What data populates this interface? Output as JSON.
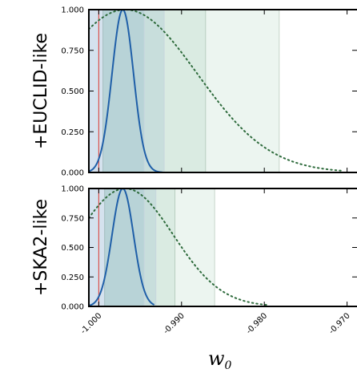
{
  "chart_data": {
    "type": "line",
    "xlabel": "w",
    "xlabel_sub": "0",
    "xlim": [
      -1.0012,
      -0.9688
    ],
    "xticks": [
      -1.0,
      -0.99,
      -0.98,
      -0.97
    ],
    "xtick_labels": [
      "-1.000",
      "-0.990",
      "-0.980",
      "-0.970"
    ],
    "ylim": [
      0,
      1
    ],
    "yticks": [
      0,
      0.25,
      0.5,
      0.75,
      1.0
    ],
    "ytick_labels": [
      "0.000",
      "0.250",
      "0.500",
      "0.750",
      "1.000"
    ],
    "reference_line_x": -1.0,
    "colors": {
      "dotted": "#2e6b3c",
      "solid": "#1f5fa8",
      "reference": "#d9534f",
      "band_fill": "#2e8b57",
      "inner_band_fill": "#4682b4"
    },
    "panels": [
      {
        "label": "+EUCLID-like",
        "dotted_curve": {
          "peak": -0.9968,
          "sigma": 0.0087,
          "x_end": -0.9707
        },
        "solid_curve": {
          "peak": -0.9971,
          "sigma": 0.0013,
          "x_start": -1.0012,
          "x_end": -0.9923
        },
        "bands_dotted": [
          [
            -0.9995,
            -0.9871
          ],
          [
            -0.9995,
            -0.9782
          ]
        ],
        "bands_solid": [
          [
            -1.0012,
            -0.9921
          ],
          [
            -1.0012,
            -0.9945
          ]
        ]
      },
      {
        "label": "+SKA2-like",
        "dotted_curve": {
          "peak": -0.9968,
          "sigma": 0.0058,
          "x_start": -1.0012,
          "x_end": -0.9795
        },
        "solid_curve": {
          "peak": -0.9971,
          "sigma": 0.0013,
          "x_start": -1.0012,
          "x_end": -0.9933
        },
        "bands_dotted": [
          [
            -0.9993,
            -0.9908
          ],
          [
            -0.9993,
            -0.986
          ]
        ],
        "bands_solid": [
          [
            -1.0012,
            -0.9931
          ],
          [
            -1.0012,
            -0.9945
          ]
        ]
      }
    ]
  }
}
